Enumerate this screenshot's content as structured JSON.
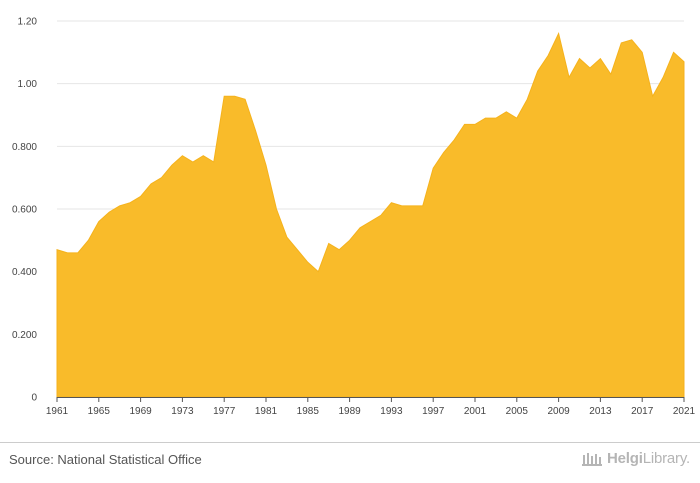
{
  "chart_data": {
    "type": "area",
    "title": "",
    "xlabel": "",
    "ylabel": "",
    "color": "#f9bb2a",
    "x": [
      1961,
      1962,
      1963,
      1964,
      1965,
      1966,
      1967,
      1968,
      1969,
      1970,
      1971,
      1972,
      1973,
      1974,
      1975,
      1976,
      1977,
      1978,
      1979,
      1980,
      1981,
      1982,
      1983,
      1984,
      1985,
      1986,
      1987,
      1988,
      1989,
      1990,
      1991,
      1992,
      1993,
      1994,
      1995,
      1996,
      1997,
      1998,
      1999,
      2000,
      2001,
      2002,
      2003,
      2004,
      2005,
      2006,
      2007,
      2008,
      2009,
      2010,
      2011,
      2012,
      2013,
      2014,
      2015,
      2016,
      2017,
      2018,
      2019,
      2020,
      2021
    ],
    "values": [
      0.47,
      0.46,
      0.46,
      0.5,
      0.56,
      0.59,
      0.61,
      0.62,
      0.64,
      0.68,
      0.7,
      0.74,
      0.77,
      0.75,
      0.77,
      0.75,
      0.96,
      0.96,
      0.95,
      0.85,
      0.74,
      0.6,
      0.51,
      0.47,
      0.43,
      0.4,
      0.49,
      0.47,
      0.5,
      0.54,
      0.56,
      0.58,
      0.62,
      0.61,
      0.61,
      0.61,
      0.73,
      0.78,
      0.82,
      0.87,
      0.87,
      0.89,
      0.89,
      0.91,
      0.89,
      0.95,
      1.04,
      1.09,
      1.16,
      1.02,
      1.08,
      1.05,
      1.08,
      1.03,
      1.13,
      1.14,
      1.1,
      0.96,
      1.02,
      1.1,
      1.07
    ],
    "ylim": [
      0,
      1.2
    ],
    "y_ticks": [
      {
        "value": 0,
        "label": "0"
      },
      {
        "value": 0.2,
        "label": "0.200"
      },
      {
        "value": 0.4,
        "label": "0.400"
      },
      {
        "value": 0.6,
        "label": "0.600"
      },
      {
        "value": 0.8,
        "label": "0.800"
      },
      {
        "value": 1.0,
        "label": "1.00"
      },
      {
        "value": 1.2,
        "label": "1.20"
      }
    ],
    "x_ticks": [
      "1961",
      "1965",
      "1969",
      "1973",
      "1977",
      "1981",
      "1985",
      "1989",
      "1993",
      "1997",
      "2001",
      "2005",
      "2009",
      "2013",
      "2017",
      "2021"
    ],
    "grid": true
  },
  "footer": {
    "source": "Source: National Statistical Office",
    "brand_name": "Helgi",
    "brand_suffix": "Library",
    "brand_tld": "."
  }
}
